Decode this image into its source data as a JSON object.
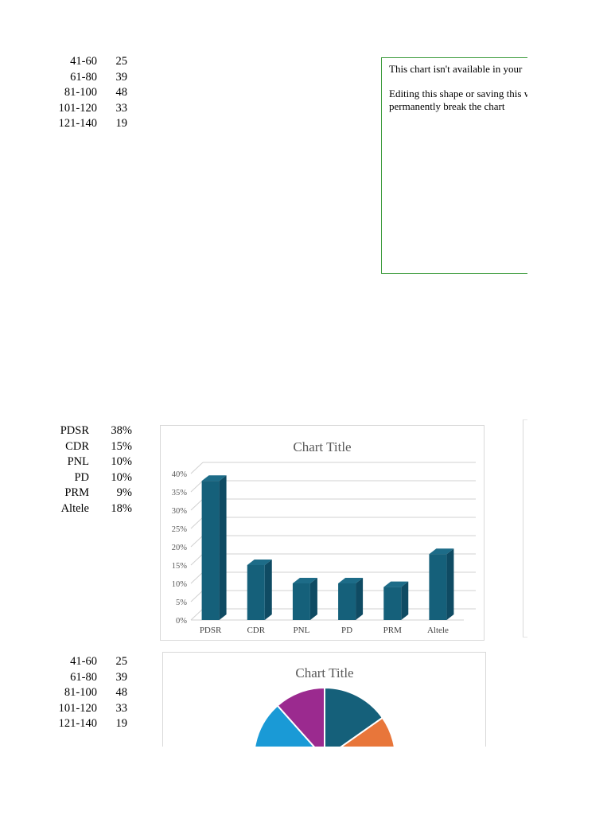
{
  "table_top": {
    "rows": [
      {
        "label": "41-60",
        "value": "25"
      },
      {
        "label": "61-80",
        "value": "39"
      },
      {
        "label": "81-100",
        "value": "48"
      },
      {
        "label": "101-120",
        "value": "33"
      },
      {
        "label": "121-140",
        "value": "19"
      }
    ]
  },
  "notice": {
    "line1": "This chart isn't available in your",
    "line2": "Editing this shape or saving this will permanently break the chart"
  },
  "table_mid": {
    "rows": [
      {
        "label": "PDSR",
        "value": "38%"
      },
      {
        "label": "CDR",
        "value": "15%"
      },
      {
        "label": "PNL",
        "value": "10%"
      },
      {
        "label": "PD",
        "value": "10%"
      },
      {
        "label": "PRM",
        "value": "9%"
      },
      {
        "label": "Altele",
        "value": "18%"
      }
    ]
  },
  "table_bottom": {
    "rows": [
      {
        "label": "41-60",
        "value": "25"
      },
      {
        "label": "61-80",
        "value": "39"
      },
      {
        "label": "81-100",
        "value": "48"
      },
      {
        "label": "101-120",
        "value": "33"
      },
      {
        "label": "121-140",
        "value": "19"
      }
    ]
  },
  "chart_data": [
    {
      "type": "bar",
      "title": "Chart Title",
      "categories": [
        "PDSR",
        "CDR",
        "PNL",
        "PD",
        "PRM",
        "Altele"
      ],
      "values": [
        38,
        15,
        10,
        10,
        9,
        18
      ],
      "unit": "%",
      "ylim": [
        0,
        40
      ],
      "yticks": [
        0,
        5,
        10,
        15,
        20,
        25,
        30,
        35,
        40
      ],
      "grid": true,
      "color": "#15607a"
    },
    {
      "type": "pie",
      "title": "Chart Title",
      "categories": [
        "41-60",
        "61-80",
        "81-100",
        "101-120",
        "121-140"
      ],
      "values": [
        25,
        39,
        48,
        33,
        19
      ],
      "colors": [
        "#15607a",
        "#e8763a",
        "#9a9a9a",
        "#1a9ad6",
        "#9b2a8f"
      ]
    }
  ]
}
